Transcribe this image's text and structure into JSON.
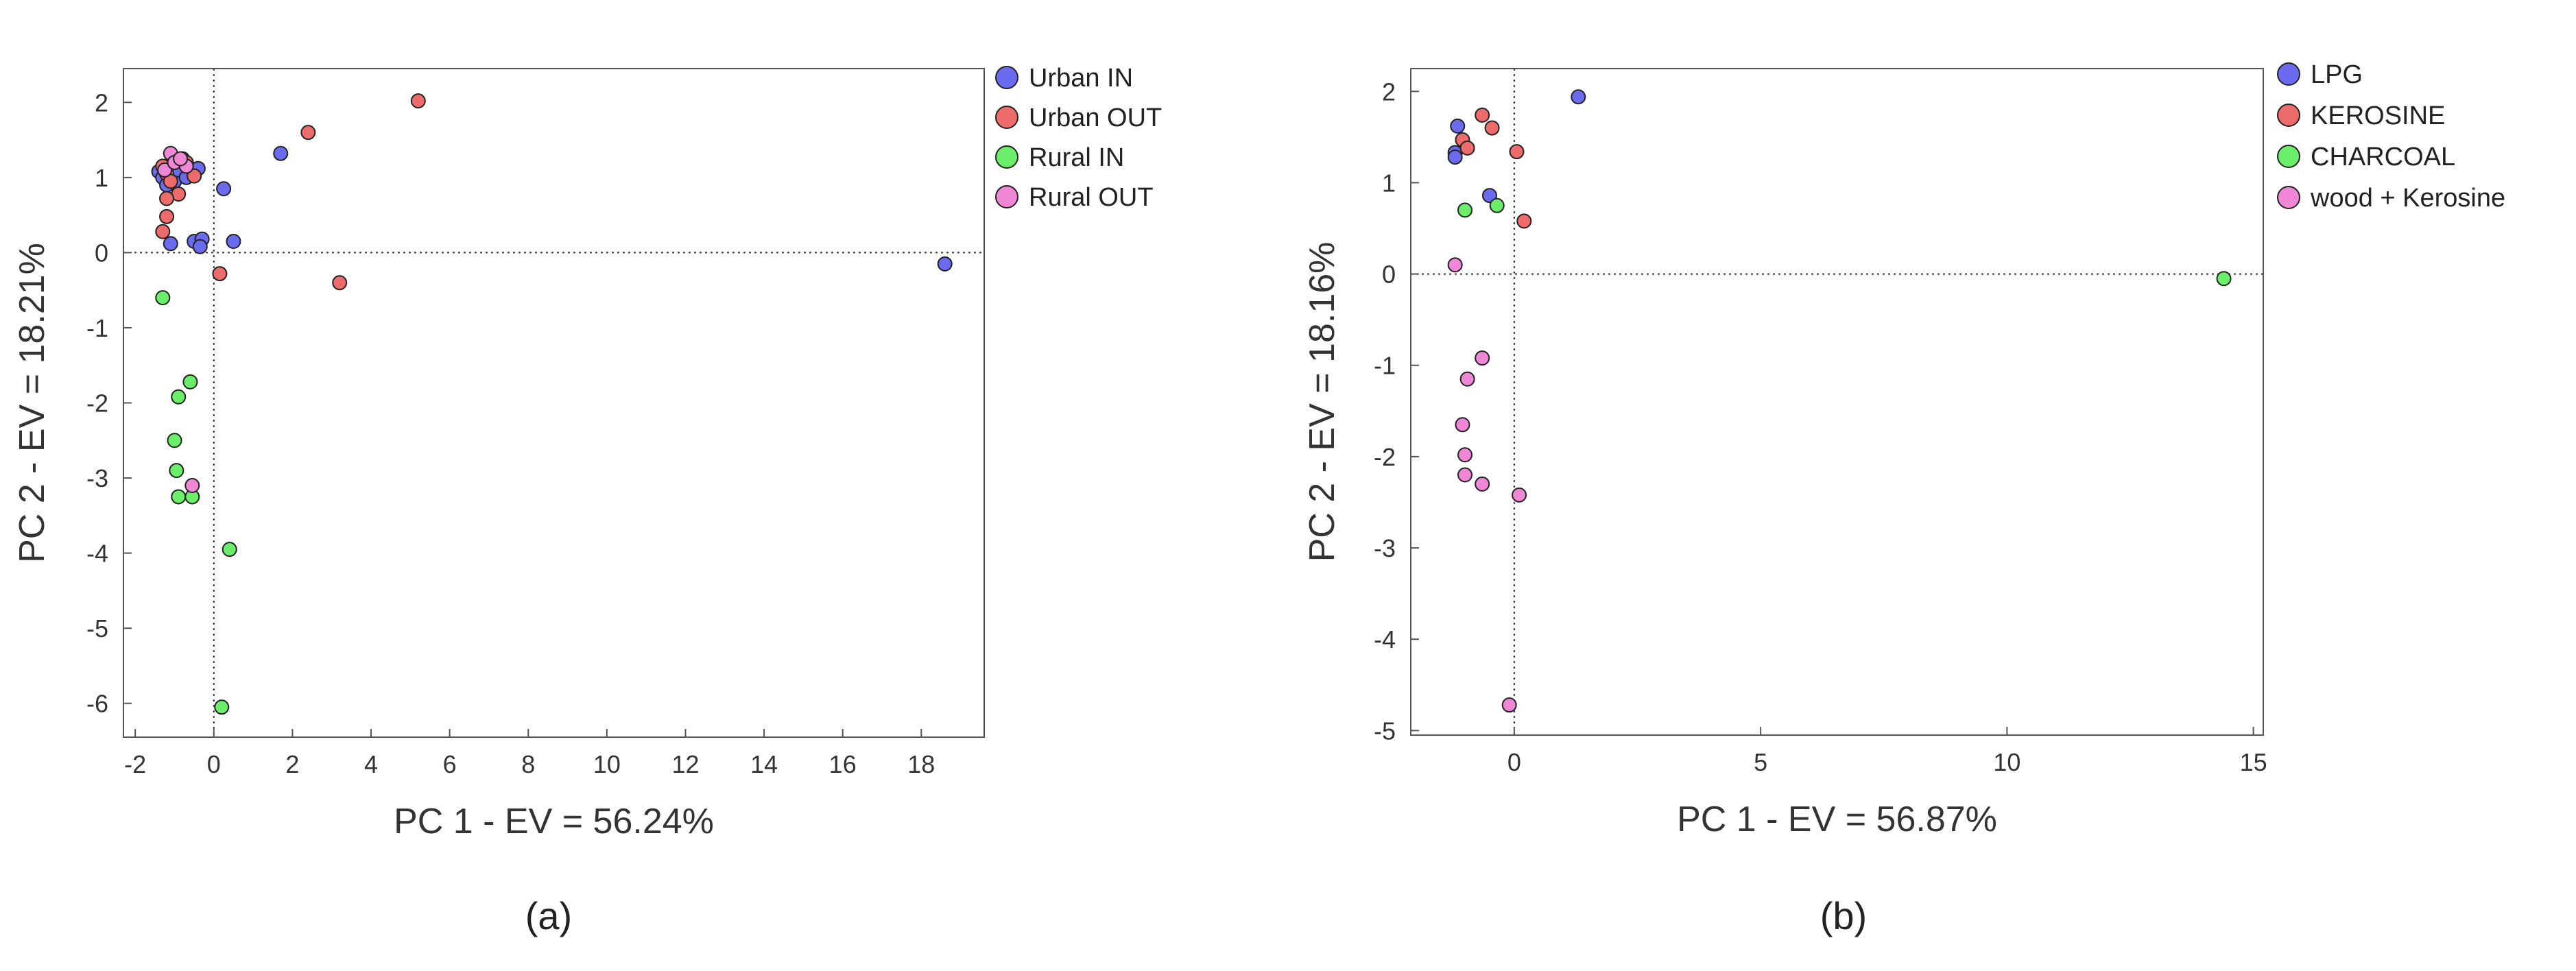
{
  "chart_data": [
    {
      "panel": "(a)",
      "type": "scatter",
      "title": "",
      "xlabel": "PC 1 - EV = 56.24%",
      "ylabel": "PC 2 - EV = 18.21%",
      "xlim": [
        -2.3,
        19.6
      ],
      "ylim": [
        -6.45,
        2.45
      ],
      "xticks": [
        -2,
        0,
        2,
        4,
        6,
        8,
        10,
        12,
        14,
        16,
        18
      ],
      "xtick_labels": [
        "-2",
        "0",
        "2",
        "4",
        "6",
        "8",
        "10",
        "12",
        "14",
        "16",
        "18"
      ],
      "yticks": [
        2,
        1,
        0,
        -1,
        -2,
        -3,
        -4,
        -5,
        -6
      ],
      "ytick_labels": [
        "2",
        "1",
        "0",
        "-1",
        "-2",
        "-3",
        "-4",
        "-5",
        "-6"
      ],
      "reference_lines": {
        "x": 0,
        "y": 0,
        "style": "dotted"
      },
      "grid": false,
      "legend_position": "outside-right-top",
      "series": [
        {
          "name": "Urban IN",
          "color": "#6b6bef",
          "points": [
            [
              -1.4,
              1.08
            ],
            [
              -1.3,
              1.0
            ],
            [
              -1.2,
              0.9
            ],
            [
              -1.1,
              1.05
            ],
            [
              -1.0,
              0.95
            ],
            [
              -0.9,
              1.1
            ],
            [
              -0.7,
              1.0
            ],
            [
              -0.5,
              1.05
            ],
            [
              -0.4,
              1.12
            ],
            [
              -1.1,
              0.12
            ],
            [
              -0.5,
              0.15
            ],
            [
              -0.3,
              0.18
            ],
            [
              -0.35,
              0.08
            ],
            [
              0.25,
              0.85
            ],
            [
              0.5,
              0.15
            ],
            [
              1.7,
              1.32
            ],
            [
              18.6,
              -0.15
            ]
          ]
        },
        {
          "name": "Urban OUT",
          "color": "#ee6b6b",
          "points": [
            [
              -1.3,
              1.15
            ],
            [
              -1.2,
              1.05
            ],
            [
              -1.1,
              0.95
            ],
            [
              -0.8,
              1.25
            ],
            [
              -0.7,
              1.2
            ],
            [
              -0.5,
              1.02
            ],
            [
              -0.9,
              0.78
            ],
            [
              -1.2,
              0.72
            ],
            [
              -1.2,
              0.48
            ],
            [
              -1.3,
              0.28
            ],
            [
              0.15,
              -0.28
            ],
            [
              2.4,
              1.6
            ],
            [
              3.2,
              -0.4
            ],
            [
              5.2,
              2.02
            ]
          ]
        },
        {
          "name": "Rural IN",
          "color": "#6bef6b",
          "points": [
            [
              -1.3,
              -0.6
            ],
            [
              -0.6,
              -1.72
            ],
            [
              -0.9,
              -1.92
            ],
            [
              -1.0,
              -2.5
            ],
            [
              -0.95,
              -2.9
            ],
            [
              -0.9,
              -3.25
            ],
            [
              -0.55,
              -3.25
            ],
            [
              0.4,
              -3.95
            ],
            [
              0.2,
              -6.05
            ]
          ]
        },
        {
          "name": "Rural OUT",
          "color": "#ef86d6",
          "points": [
            [
              -1.1,
              1.32
            ],
            [
              -1.25,
              1.1
            ],
            [
              -1.0,
              1.2
            ],
            [
              -0.7,
              1.15
            ],
            [
              -0.85,
              1.25
            ],
            [
              -0.55,
              -3.1
            ]
          ]
        }
      ],
      "caption": "(a)"
    },
    {
      "panel": "(b)",
      "type": "scatter",
      "title": "",
      "xlabel": "PC 1 - EV = 56.87%",
      "ylabel": "PC 2 - EV = 18.16%",
      "xlim": [
        -2.1,
        15.2
      ],
      "ylim": [
        -5.05,
        2.25
      ],
      "xticks": [
        0,
        5,
        10,
        15
      ],
      "xtick_labels": [
        "0",
        "5",
        "10",
        "15"
      ],
      "yticks": [
        2,
        1,
        0,
        -1,
        -2,
        -3,
        -4,
        -5
      ],
      "ytick_labels": [
        "2",
        "1",
        "0",
        "-1",
        "-2",
        "-3",
        "-4",
        "-5"
      ],
      "reference_lines": {
        "x": 0,
        "y": 0,
        "style": "dotted"
      },
      "grid": false,
      "legend_position": "outside-right-top",
      "series": [
        {
          "name": "LPG",
          "color": "#6b6bef",
          "points": [
            [
              -1.15,
              1.62
            ],
            [
              -1.2,
              1.33
            ],
            [
              -1.2,
              1.28
            ],
            [
              -0.5,
              0.86
            ],
            [
              1.3,
              1.94
            ]
          ]
        },
        {
          "name": "KEROSINE",
          "color": "#ee6b6b",
          "points": [
            [
              -1.05,
              1.47
            ],
            [
              -0.95,
              1.38
            ],
            [
              -0.65,
              1.74
            ],
            [
              -0.45,
              1.6
            ],
            [
              0.05,
              1.34
            ],
            [
              0.2,
              0.58
            ]
          ]
        },
        {
          "name": "CHARCOAL",
          "color": "#6bef6b",
          "points": [
            [
              -1.0,
              0.7
            ],
            [
              -0.35,
              0.75
            ],
            [
              14.4,
              -0.05
            ]
          ]
        },
        {
          "name": "wood + Kerosine",
          "color": "#ef86d6",
          "points": [
            [
              -1.2,
              0.1
            ],
            [
              -0.65,
              -0.92
            ],
            [
              -0.95,
              -1.15
            ],
            [
              -1.05,
              -1.65
            ],
            [
              -1.0,
              -1.98
            ],
            [
              -1.0,
              -2.2
            ],
            [
              -0.65,
              -2.3
            ],
            [
              0.1,
              -2.42
            ],
            [
              -0.1,
              -4.72
            ]
          ]
        }
      ],
      "caption": "(b)"
    }
  ]
}
